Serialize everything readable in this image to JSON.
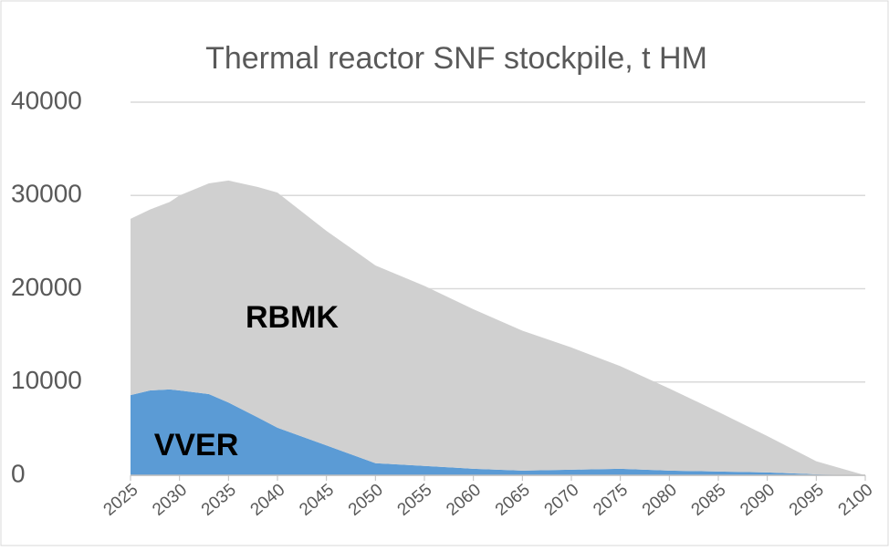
{
  "chart_data": {
    "type": "stacked_area",
    "title": "Thermal reactor SNF stockpile, t HM",
    "x": [
      2025,
      2027,
      2029,
      2030,
      2033,
      2035,
      2038,
      2040,
      2045,
      2050,
      2055,
      2060,
      2065,
      2070,
      2075,
      2080,
      2085,
      2090,
      2095,
      2100
    ],
    "series": [
      {
        "name": "VVER",
        "color": "#5b9bd5",
        "values": [
          8600,
          9100,
          9200,
          9100,
          8700,
          7800,
          6200,
          5100,
          3200,
          1300,
          1000,
          700,
          500,
          600,
          700,
          500,
          400,
          300,
          100,
          0
        ]
      },
      {
        "name": "RBMK",
        "color": "#d0d0d0",
        "values": [
          18900,
          19400,
          20100,
          20900,
          22600,
          23800,
          24700,
          25200,
          23000,
          21200,
          19300,
          17100,
          15000,
          13100,
          11000,
          8800,
          6400,
          3900,
          1400,
          0
        ]
      }
    ],
    "xlim": [
      2025,
      2100
    ],
    "xticks": [
      2025,
      2030,
      2035,
      2040,
      2045,
      2050,
      2055,
      2060,
      2065,
      2070,
      2075,
      2080,
      2085,
      2090,
      2095,
      2100
    ],
    "ylim": [
      0,
      40000
    ],
    "yticks": [
      0,
      10000,
      20000,
      30000,
      40000
    ],
    "grid": true
  }
}
